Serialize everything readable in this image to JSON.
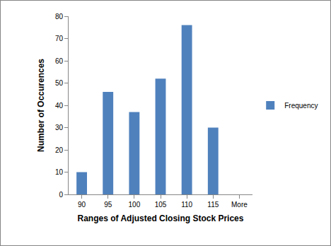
{
  "chart_data": {
    "type": "bar",
    "x_label": "Ranges of Adjusted Closing Stock Prices",
    "y_label": "Number of Occurences",
    "categories": [
      "90",
      "95",
      "100",
      "105",
      "110",
      "115",
      "More"
    ],
    "series": [
      {
        "name": "Frequency",
        "color": "#4f81bd",
        "values": [
          10,
          46,
          37,
          52,
          76,
          30,
          0
        ]
      }
    ],
    "ylim": [
      0,
      80
    ],
    "yticks": [
      0,
      10,
      20,
      30,
      40,
      50,
      60,
      70,
      80
    ],
    "grid": false,
    "legend": "right"
  }
}
